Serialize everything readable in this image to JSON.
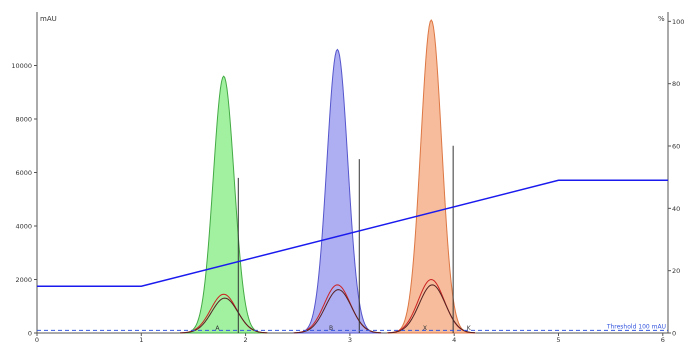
{
  "chart_data": {
    "type": "area",
    "y_left_unit": "mAU",
    "y_right_unit": "%",
    "x_ticks": [
      "0",
      "1",
      "2",
      "3",
      "4",
      "5",
      "6"
    ],
    "y_left_ticks": [
      "0",
      "2000",
      "4000",
      "6000",
      "8000",
      "10000"
    ],
    "y_right_ticks": [
      "0",
      "20",
      "40",
      "60",
      "80",
      "100"
    ],
    "xlim": [
      0,
      6.05
    ],
    "ylim_left": [
      0,
      12000
    ],
    "ylim_right": [
      0,
      103
    ],
    "peaks": [
      {
        "color": "#90ee90",
        "stroke": "#44aa44",
        "center": 1.79,
        "height": 9600,
        "sigma": 0.1,
        "fraction_label": "A",
        "cut_x": 1.93,
        "cut_height": 5800,
        "sub_height": 1450
      },
      {
        "color": "#a0a0f0",
        "stroke": "#5555cc",
        "center": 2.88,
        "height": 10600,
        "sigma": 0.1,
        "fraction_label": "B",
        "cut_x": 3.09,
        "cut_height": 6500,
        "sub_height": 1800
      },
      {
        "color": "#f5b08a",
        "stroke": "#dd7744",
        "center": 3.78,
        "height": 11700,
        "sigma": 0.1,
        "fraction_label": "X",
        "cut_x": 3.99,
        "cut_height": 7000,
        "sub_height": 2000
      }
    ],
    "extra_fraction_labels": [
      {
        "text": "K",
        "x": 4.12
      }
    ],
    "gradient": {
      "color": "#1a1aee",
      "x": [
        0,
        1.0,
        5.0,
        6.05
      ],
      "y_percent": [
        15,
        15,
        49,
        49
      ]
    },
    "threshold": {
      "value": 100,
      "label": "Threshold 100 mAU",
      "color": "#3355dd"
    }
  }
}
